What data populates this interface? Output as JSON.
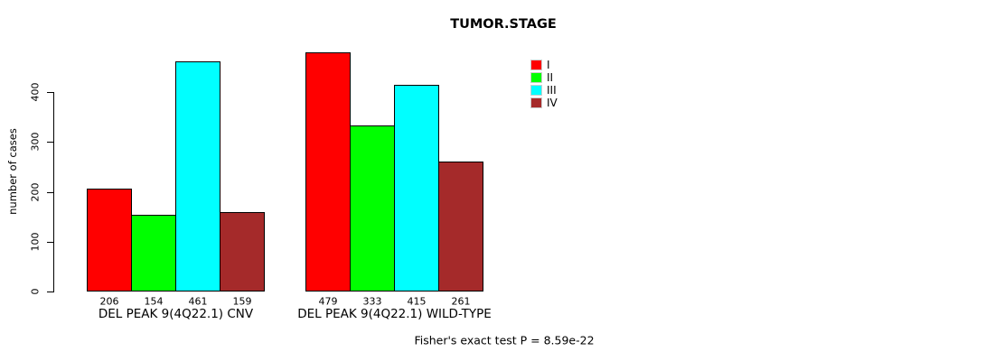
{
  "title": "TUMOR.STAGE",
  "chart_data": {
    "type": "bar",
    "title": "TUMOR.STAGE",
    "xlabel": "",
    "ylabel": "number of cases",
    "ylim": [
      0,
      480
    ],
    "yticks": [
      0,
      100,
      200,
      300,
      400
    ],
    "grid": false,
    "categories": [
      "DEL PEAK 9(4Q22.1) CNV",
      "DEL PEAK 9(4Q22.1) WILD-TYPE"
    ],
    "series": [
      {
        "name": "I",
        "color": "#FF0000",
        "values": [
          206,
          479
        ]
      },
      {
        "name": "II",
        "color": "#00FF00",
        "values": [
          154,
          333
        ]
      },
      {
        "name": "III",
        "color": "#00FFFF",
        "values": [
          461,
          415
        ]
      },
      {
        "name": "IV",
        "color": "#A52A2A",
        "values": [
          159,
          261
        ]
      }
    ],
    "bar_value_labels": true,
    "legend_position": "top-right",
    "annotation": "Fisher's exact test P = 8.59e-22"
  }
}
